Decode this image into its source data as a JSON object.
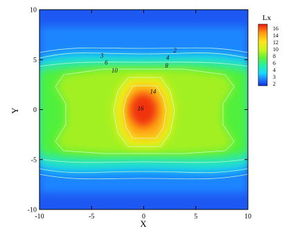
{
  "chart_data": {
    "type": "heatmap",
    "xlabel": "X",
    "ylabel": "Y",
    "xlim": [
      -10,
      10
    ],
    "ylim": [
      -10,
      10
    ],
    "x_ticks": [
      -10,
      -5,
      0,
      5,
      10
    ],
    "y_ticks": [
      -10,
      -5,
      0,
      5,
      10
    ],
    "legend": {
      "title": "Lx",
      "placement": "right",
      "levels": [
        16,
        14,
        12,
        10,
        8,
        6,
        4,
        3,
        2
      ]
    },
    "color_scale": [
      "#1530d8",
      "#1e7bff",
      "#19d7ff",
      "#22f0b0",
      "#5ef03c",
      "#c8f51c",
      "#ffe31a",
      "#ff9a12",
      "#f01810"
    ],
    "contour_labels": [
      {
        "text": "2",
        "x": 3.0,
        "y": 5.9
      },
      {
        "text": "3",
        "x": -4.0,
        "y": 5.4
      },
      {
        "text": "4",
        "x": 2.3,
        "y": 5.2
      },
      {
        "text": "6",
        "x": -3.6,
        "y": 4.7
      },
      {
        "text": "8",
        "x": 2.2,
        "y": 4.4
      },
      {
        "text": "10",
        "x": -2.8,
        "y": 3.9
      },
      {
        "text": "14",
        "x": 0.9,
        "y": 1.8
      },
      {
        "text": "16",
        "x": -0.3,
        "y": 0.1
      }
    ],
    "grid": false
  }
}
